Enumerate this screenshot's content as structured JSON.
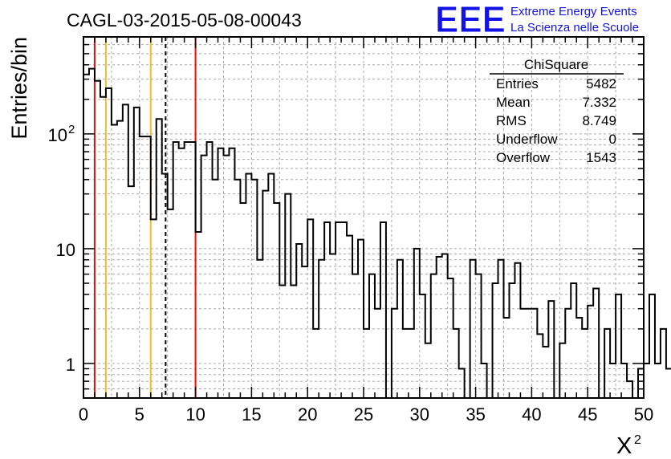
{
  "chart_data": {
    "type": "bar",
    "title": "CAGL-03-2015-05-08-00043",
    "xlabel": "X",
    "xlabel_superscript": "2",
    "ylabel": "Entries/bin",
    "xlim": [
      0,
      50
    ],
    "ylim": [
      0.5,
      700
    ],
    "y_scale": "log",
    "bin_width": 0.5,
    "x_ticks": [
      "0",
      "5",
      "10",
      "15",
      "20",
      "25",
      "30",
      "35",
      "40",
      "45",
      "50"
    ],
    "y_ticks": [
      {
        "value": 1,
        "label": "1"
      },
      {
        "value": 10,
        "label": "10"
      },
      {
        "value": 100,
        "label": "10",
        "exponent": "2"
      }
    ],
    "values": [
      330,
      370,
      290,
      210,
      250,
      120,
      130,
      180,
      35,
      170,
      95,
      95,
      18,
      135,
      45,
      22,
      85,
      75,
      85,
      85,
      14,
      65,
      85,
      40,
      75,
      65,
      75,
      40,
      25,
      45,
      40,
      8,
      32,
      45,
      25,
      4.8,
      30,
      4.8,
      11,
      7,
      18,
      2,
      8,
      17,
      9,
      17,
      17,
      13,
      6,
      12,
      2,
      6,
      3,
      17,
      0,
      3,
      8,
      2,
      2,
      10,
      4,
      1.5,
      6,
      8.5,
      9,
      5.5,
      2,
      0.9,
      0,
      8,
      6,
      1,
      0,
      5,
      8,
      2.5,
      5,
      7.5,
      3,
      3,
      3,
      1.8,
      1.4,
      3.5,
      0,
      1.5,
      3,
      5,
      2.5,
      2,
      3.2,
      4.5,
      0,
      2,
      1,
      4,
      1,
      0.7,
      0,
      0.9,
      1,
      4,
      1,
      2,
      0.9,
      0.9,
      1,
      0.5,
      4.8,
      0
    ],
    "grid": true,
    "vertical_lines": [
      {
        "x": 1,
        "color": "#e8120c",
        "style": "solid"
      },
      {
        "x": 2,
        "color": "#f0c02a",
        "style": "solid"
      },
      {
        "x": 6,
        "color": "#f0c02a",
        "style": "solid"
      },
      {
        "x": 7.332,
        "color": "#000000",
        "style": "dashed"
      },
      {
        "x": 10,
        "color": "#e8120c",
        "style": "solid"
      }
    ],
    "stats_box": {
      "title": "ChiSquare",
      "rows": [
        {
          "label": "Entries",
          "value": "5482"
        },
        {
          "label": "Mean",
          "value": "7.332"
        },
        {
          "label": "RMS",
          "value": "8.749"
        },
        {
          "label": "Underflow",
          "value": "0"
        },
        {
          "label": "Overflow",
          "value": "1543"
        }
      ]
    }
  },
  "logo": {
    "letters": "EEE",
    "line1": "Extreme Energy Events",
    "line2": "La Scienza nelle Scuole",
    "color": "#1212e6"
  }
}
